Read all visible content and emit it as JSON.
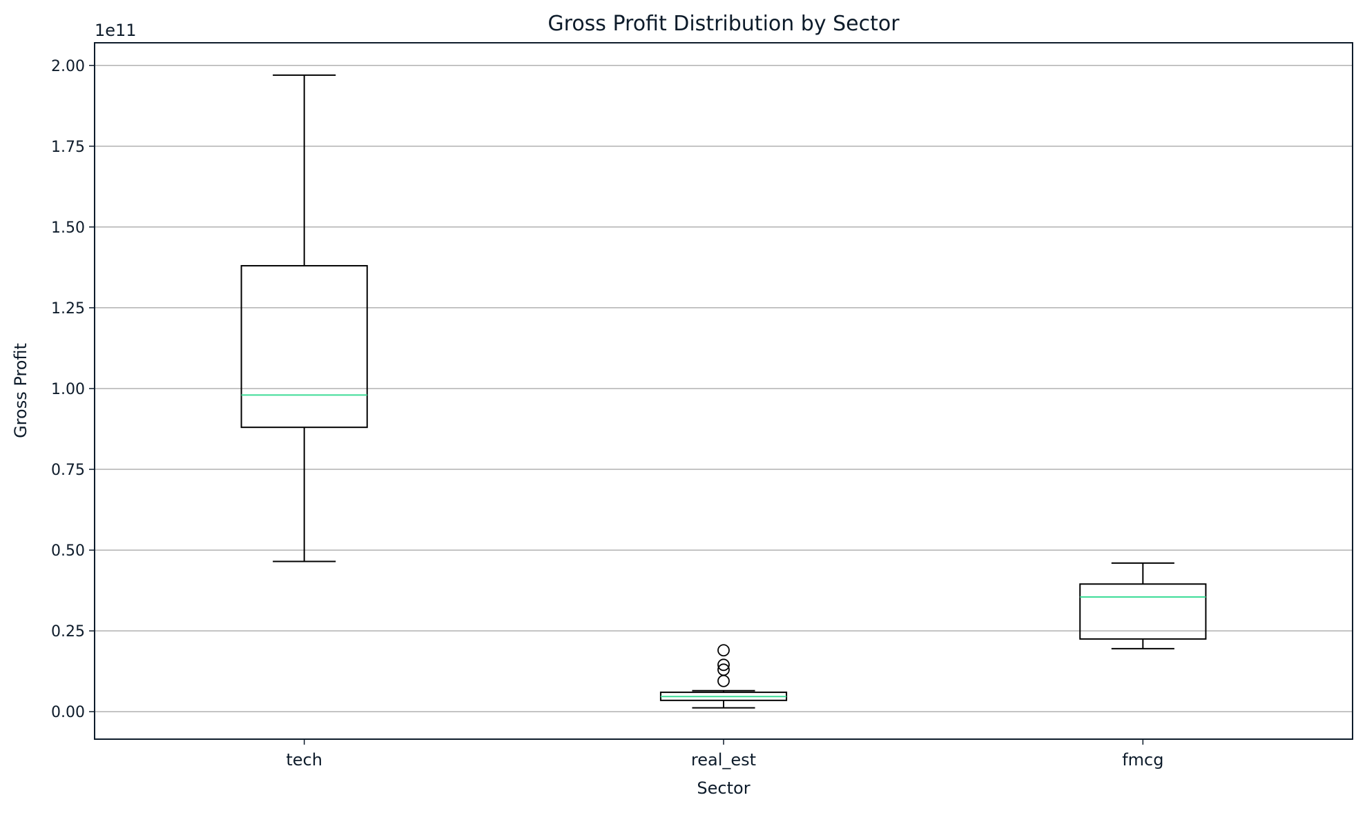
{
  "chart_data": {
    "type": "box",
    "title": "Gross Profit Distribution by Sector",
    "xlabel": "Sector",
    "ylabel": "Gross Profit",
    "offset_label": "1e11",
    "ylim": [
      -0.085,
      2.07
    ],
    "y_ticks": [
      0.0,
      0.25,
      0.5,
      0.75,
      1.0,
      1.25,
      1.5,
      1.75,
      2.0
    ],
    "y_tick_labels": [
      "0.00",
      "0.25",
      "0.50",
      "0.75",
      "1.00",
      "1.25",
      "1.50",
      "1.75",
      "2.00"
    ],
    "grid": "y",
    "categories": [
      "tech",
      "real_est",
      "fmcg"
    ],
    "boxes": [
      {
        "category": "tech",
        "whisker_low": 0.465,
        "q1": 0.88,
        "median": 0.98,
        "q3": 1.38,
        "whisker_high": 1.97,
        "outliers": []
      },
      {
        "category": "real_est",
        "whisker_low": 0.012,
        "q1": 0.035,
        "median": 0.047,
        "q3": 0.06,
        "whisker_high": 0.065,
        "outliers": [
          0.095,
          0.13,
          0.145,
          0.19
        ]
      },
      {
        "category": "fmcg",
        "whisker_low": 0.195,
        "q1": 0.225,
        "median": 0.355,
        "q3": 0.395,
        "whisker_high": 0.46,
        "outliers": []
      }
    ],
    "colors": {
      "box": "#000000",
      "median": "#3ddc97",
      "grid": "#b0b0b0",
      "axes": "#0d1b2a"
    }
  }
}
